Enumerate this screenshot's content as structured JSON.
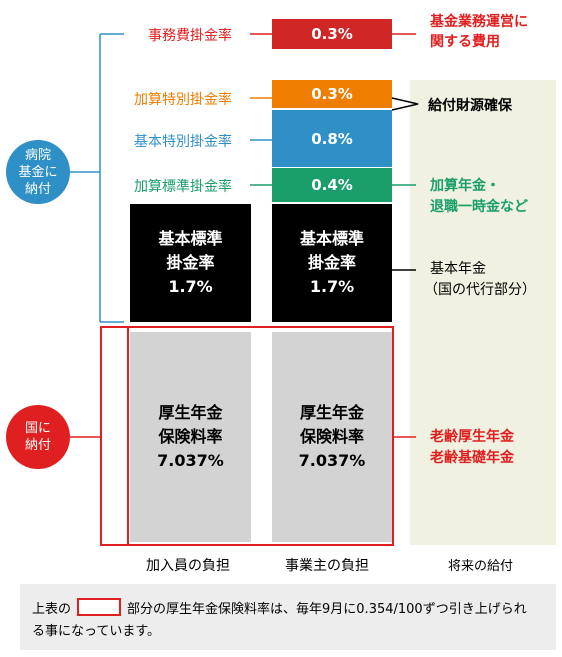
{
  "colors": {
    "red": "#e02020",
    "orange": "#ef7d00",
    "blue": "#2f90c8",
    "green": "#1a9e6a",
    "black": "#000000",
    "gray": "#d3d3d3",
    "cream": "#f1f1e1",
    "dark_red": "#d12626",
    "footer_bg": "#ededed"
  },
  "left_labels": {
    "admin": "事務費掛金率",
    "add_special": "加算特別掛金率",
    "basic_special": "基本特別掛金率",
    "add_standard": "加算標準掛金率"
  },
  "rate_boxes": {
    "admin": "0.3%",
    "add_special": "0.3%",
    "basic_special": "0.8%",
    "add_standard": "0.4%"
  },
  "basic_standard": {
    "line1": "基本標準",
    "line2": "掛金率",
    "line3": "1.7%"
  },
  "welfare_pension": {
    "line1": "厚生年金",
    "line2": "保険料率",
    "line3": "7.037%"
  },
  "circles": {
    "hospital": {
      "line1": "病院",
      "line2": "基金に",
      "line3": "納付"
    },
    "country": {
      "line1": "国に",
      "line2": "納付"
    }
  },
  "right_labels": {
    "admin_line1": "基金業務運営に",
    "admin_line2": "関する費用",
    "benefit_source": "給付財源確保",
    "add_pension_line1": "加算年金・",
    "add_pension_line2": "退職一時金など",
    "basic_pension_line1": "基本年金",
    "basic_pension_line2": "（国の代行部分）",
    "old_age_line1": "老齢厚生年金",
    "old_age_line2": "老齢基礎年金"
  },
  "columns": {
    "member": "加入員の負担",
    "employer": "事業主の負担",
    "future": "将来の給付"
  },
  "footer": {
    "prefix": "上表の",
    "text_line1": "部分の厚生年金保険料率は、毎年9月に0.354/100ずつ引き上げられ",
    "text_line2": "る事になっています。"
  }
}
